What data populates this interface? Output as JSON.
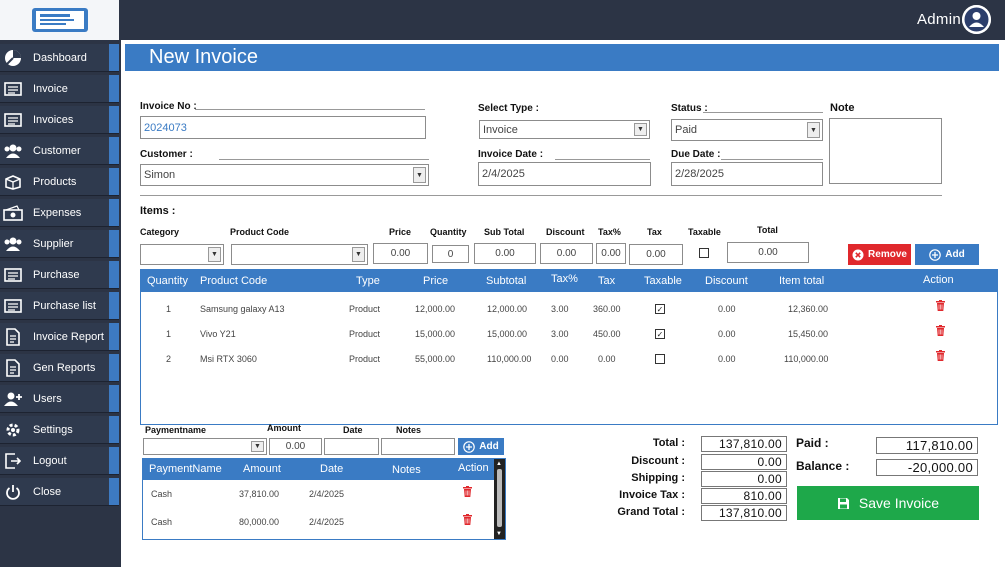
{
  "header": {
    "user": "Admin"
  },
  "sidebar": {
    "items": [
      {
        "label": "Dashboard",
        "icon": "dashboard-icon"
      },
      {
        "label": "Invoice",
        "icon": "invoice-icon"
      },
      {
        "label": "Invoices",
        "icon": "invoices-icon"
      },
      {
        "label": "Customer",
        "icon": "customer-icon"
      },
      {
        "label": "Products",
        "icon": "products-icon"
      },
      {
        "label": "Expenses",
        "icon": "expenses-icon"
      },
      {
        "label": "Supplier",
        "icon": "supplier-icon"
      },
      {
        "label": "Purchase",
        "icon": "purchase-icon"
      },
      {
        "label": "Purchase list",
        "icon": "purchase-list-icon"
      },
      {
        "label": "Invoice Report",
        "icon": "report-icon"
      },
      {
        "label": "Gen Reports",
        "icon": "gen-reports-icon"
      },
      {
        "label": "Users",
        "icon": "users-icon"
      },
      {
        "label": "Settings",
        "icon": "settings-icon"
      },
      {
        "label": "Logout",
        "icon": "logout-icon"
      },
      {
        "label": "Close",
        "icon": "power-icon"
      }
    ]
  },
  "page": {
    "title": "New Invoice"
  },
  "form": {
    "invoice_no_label": "Invoice No :",
    "invoice_no": "2024073",
    "customer_label": "Customer :",
    "customer": "Simon",
    "select_type_label": "Select Type :",
    "select_type": "Invoice",
    "invoice_date_label": "Invoice Date :",
    "invoice_date": "2/4/2025",
    "status_label": "Status :",
    "status": "Paid",
    "due_date_label": "Due Date :",
    "due_date": "2/28/2025",
    "note_label": "Note"
  },
  "items": {
    "title": "Items :",
    "labels": {
      "category": "Category",
      "product_code": "Product Code",
      "price": "Price",
      "quantity": "Quantity",
      "subtotal": "Sub Total",
      "discount": "Discount",
      "taxpct": "Tax%",
      "tax": "Tax",
      "taxable": "Taxable",
      "total": "Total"
    },
    "values": {
      "price": "0.00",
      "quantity": "0",
      "subtotal": "0.00",
      "discount": "0.00",
      "taxpct": "0.00",
      "tax": "0.00",
      "total": "0.00"
    },
    "remove_label": "Remove",
    "add_label": "Add",
    "columns": [
      "Quantity",
      "Product Code",
      "Type",
      "Price",
      "Subtotal",
      "Tax%",
      "Tax",
      "Taxable",
      "Discount",
      "Item total",
      "Action"
    ],
    "rows": [
      {
        "qty": "1",
        "code": "Samsung galaxy A13",
        "type": "Product",
        "price": "12,000.00",
        "subtotal": "12,000.00",
        "taxpct": "3.00",
        "tax": "360.00",
        "taxable": true,
        "discount": "0.00",
        "total": "12,360.00"
      },
      {
        "qty": "1",
        "code": "Vivo Y21",
        "type": "Product",
        "price": "15,000.00",
        "subtotal": "15,000.00",
        "taxpct": "3.00",
        "tax": "450.00",
        "taxable": true,
        "discount": "0.00",
        "total": "15,450.00"
      },
      {
        "qty": "2",
        "code": "Msi RTX 3060",
        "type": "Product",
        "price": "55,000.00",
        "subtotal": "110,000.00",
        "taxpct": "0.00",
        "tax": "0.00",
        "taxable": false,
        "discount": "0.00",
        "total": "110,000.00"
      }
    ]
  },
  "payments": {
    "labels": {
      "name": "Paymentname",
      "amount": "Amount",
      "date": "Date",
      "notes": "Notes"
    },
    "amount_value": "0.00",
    "add_label": "Add",
    "columns": [
      "PaymentName",
      "Amount",
      "Date",
      "Notes",
      "Action"
    ],
    "rows": [
      {
        "name": "Cash",
        "amount": "37,810.00",
        "date": "2/4/2025"
      },
      {
        "name": "Cash",
        "amount": "80,000.00",
        "date": "2/4/2025"
      }
    ]
  },
  "summary": {
    "total_label": "Total :",
    "total": "137,810.00",
    "discount_label": "Discount :",
    "discount": "0.00",
    "shipping_label": "Shipping :",
    "shipping": "0.00",
    "invoice_tax_label": "Invoice Tax :",
    "invoice_tax": "810.00",
    "grand_total_label": "Grand Total :",
    "grand_total": "137,810.00",
    "paid_label": "Paid :",
    "paid": "117,810.00",
    "balance_label": "Balance :",
    "balance": "-20,000.00",
    "save_label": "Save Invoice"
  },
  "colors": {
    "accent": "#3a7bc4",
    "sidebar": "#2c3445",
    "remove": "#e0282c",
    "save": "#1ea84a"
  }
}
